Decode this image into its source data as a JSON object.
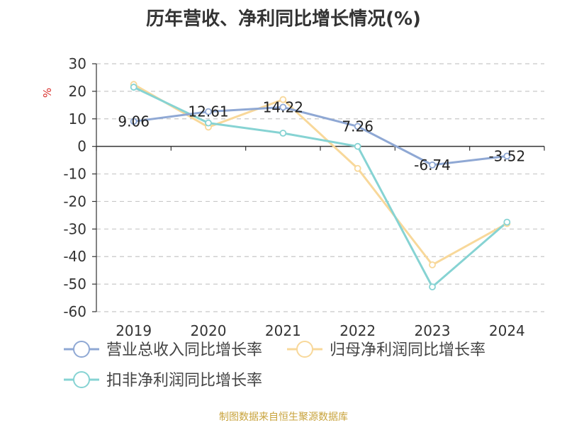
{
  "chart_data": {
    "type": "line",
    "title": "历年营收、净利同比增长情况(%)",
    "ylabel": "%",
    "xlabel": "",
    "categories": [
      "2019",
      "2020",
      "2021",
      "2022",
      "2023",
      "2024"
    ],
    "ylim": [
      -60,
      30
    ],
    "yticks": [
      30,
      20,
      10,
      0,
      -10,
      -20,
      -30,
      -40,
      -50,
      -60
    ],
    "grid": true,
    "legend_position": "bottom-left",
    "series": [
      {
        "name": "营业总收入同比增长率",
        "color": "#8fa8d4",
        "values": [
          9.06,
          12.61,
          14.22,
          7.26,
          -6.74,
          -3.52
        ],
        "labels": [
          "9.06",
          "12.61",
          "14.22",
          "7.26",
          "-6.74",
          "-3.52"
        ]
      },
      {
        "name": "归母净利润同比增长率",
        "color": "#f8d89a",
        "values": [
          22.5,
          7.0,
          17.0,
          -8.0,
          -43.0,
          -28.0
        ]
      },
      {
        "name": "扣非净利润同比增长率",
        "color": "#86d3d3",
        "values": [
          21.5,
          8.5,
          4.8,
          0.0,
          -51.0,
          -27.5
        ]
      }
    ]
  },
  "source_note": "制图数据来自恒生聚源数据库"
}
